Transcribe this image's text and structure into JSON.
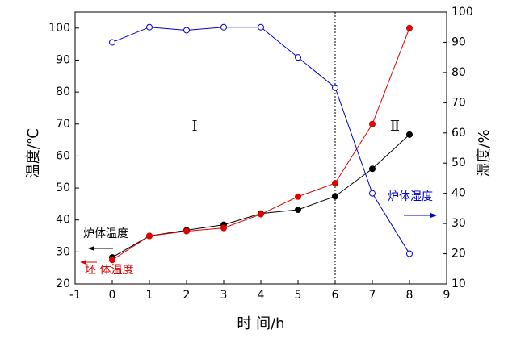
{
  "chart_data": {
    "type": "line",
    "x": [
      0,
      1,
      2,
      3,
      4,
      5,
      6,
      7,
      8
    ],
    "xlim": [
      -1,
      9
    ],
    "xticks": [
      -1,
      0,
      1,
      2,
      3,
      4,
      5,
      6,
      7,
      8,
      9
    ],
    "ylim": [
      20,
      105
    ],
    "yticks": [
      20,
      30,
      40,
      50,
      60,
      70,
      80,
      90,
      100
    ],
    "y2lim": [
      10,
      100
    ],
    "y2ticks": [
      10,
      20,
      30,
      40,
      50,
      60,
      70,
      80,
      90,
      100
    ],
    "xlabel": "时  间/h",
    "ylabel": "温度/℃",
    "y2label": "湿度/%",
    "reference_line_x": 6,
    "annotations": [
      {
        "text": "Ⅰ"
      },
      {
        "text": "Ⅱ"
      }
    ],
    "series": [
      {
        "name": "炉体温度",
        "color": "#000000",
        "marker": "filled",
        "values": [
          28.3,
          35,
          36.8,
          38.5,
          42,
          43.2,
          47.4,
          56,
          66.7
        ]
      },
      {
        "name": "坯 体温度",
        "color": "#e00000",
        "marker": "filled",
        "values": [
          27.5,
          35,
          36.5,
          37.5,
          41.8,
          47.3,
          51.5,
          70,
          100
        ]
      },
      {
        "name": "炉体湿度",
        "color": "#0000cc",
        "marker": "open",
        "axis": "y2",
        "values": [
          90,
          95,
          94,
          95,
          95,
          85,
          75,
          40,
          20
        ]
      }
    ]
  }
}
